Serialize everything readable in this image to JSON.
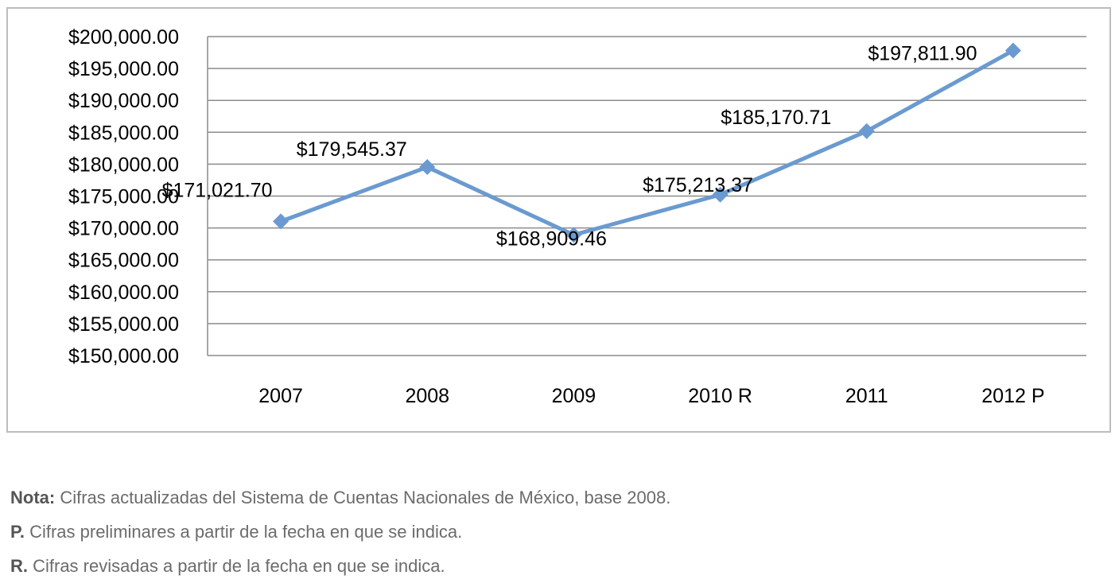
{
  "chart_data": {
    "type": "line",
    "title": "",
    "xlabel": "",
    "ylabel": "",
    "categories": [
      "2007",
      "2008",
      "2009",
      "2010 R",
      "2011",
      "2012 P"
    ],
    "series": [
      {
        "name": "",
        "values": [
          171021.7,
          179545.37,
          168909.46,
          175213.37,
          185170.71,
          197811.9
        ],
        "labels": [
          "$171,021.70",
          "$179,545.37",
          "$168,909.46",
          "$175,213.37",
          "$185,170.71",
          "$197,811.90"
        ],
        "color": "#6a9ad0",
        "marker": "diamond"
      }
    ],
    "ylim": [
      150000,
      200000
    ],
    "yticks": [
      150000,
      155000,
      160000,
      165000,
      170000,
      175000,
      180000,
      185000,
      190000,
      195000,
      200000
    ],
    "ytick_labels": [
      "$150,000.00",
      "$155,000.00",
      "$160,000.00",
      "$165,000.00",
      "$170,000.00",
      "$175,000.00",
      "$180,000.00",
      "$185,000.00",
      "$190,000.00",
      "$195,000.00",
      "$200,000.00"
    ],
    "grid": true,
    "legend": "none"
  },
  "notes": [
    {
      "label": "Nota:",
      "text": " Cifras actualizadas del Sistema de Cuentas Nacionales de México, base 2008."
    },
    {
      "label": "P.",
      "text": " Cifras preliminares a partir de la fecha en que se indica."
    },
    {
      "label": "R.",
      "text": " Cifras revisadas a partir de la fecha en que se indica."
    }
  ]
}
